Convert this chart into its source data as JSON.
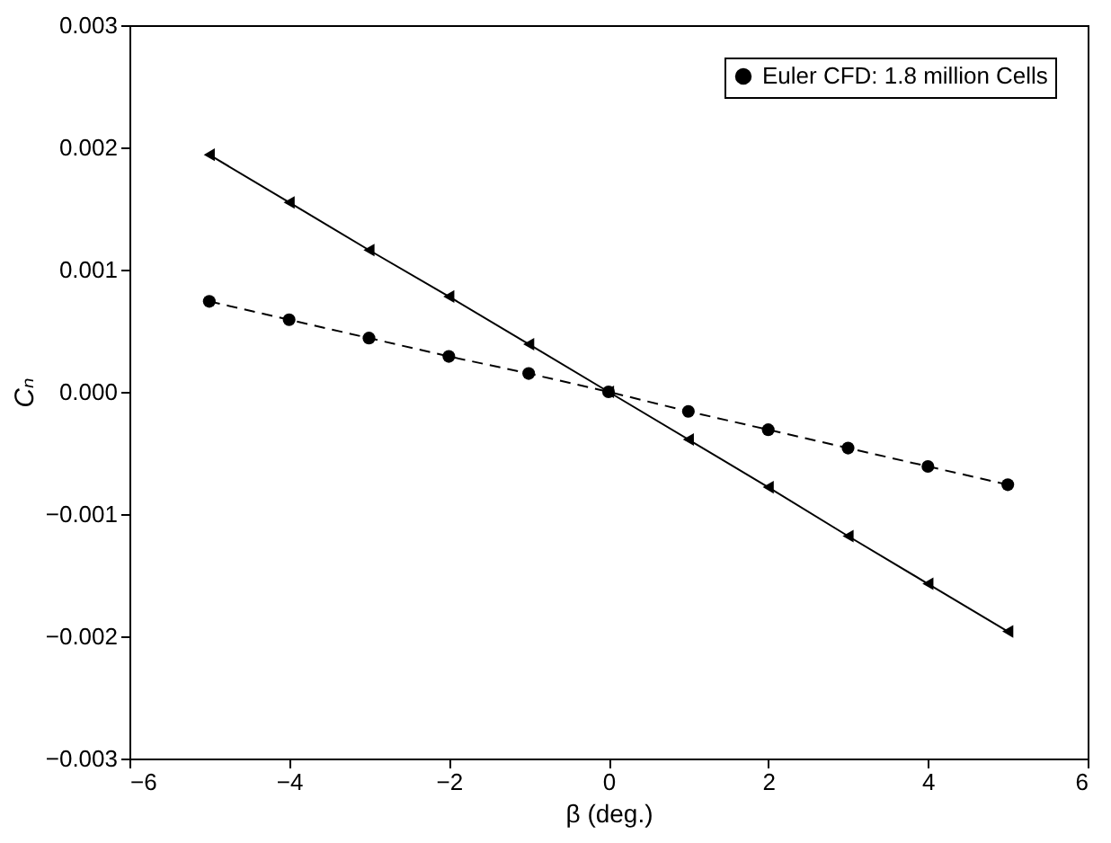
{
  "chart_data": {
    "type": "line",
    "xlabel": "β (deg.)",
    "ylabel": "Cₙ",
    "x": [
      -5,
      -4,
      -3,
      -2,
      -1,
      0,
      1,
      2,
      3,
      4,
      5
    ],
    "series": [
      {
        "color": "#000000",
        "marker": "triangle",
        "line_style": "solid",
        "values": [
          0.00194,
          0.00155,
          0.00116,
          0.00078,
          0.00039,
          0,
          -0.00039,
          -0.00078,
          -0.00118,
          -0.00157,
          -0.00196
        ]
      },
      {
        "name": "Euler CFD: 1.8 million Cells",
        "color": "#000000",
        "marker": "circle",
        "line_style": "dashed",
        "values": [
          0.00074,
          0.00059,
          0.00044,
          0.00029,
          0.00015,
          0,
          -0.00016,
          -0.00031,
          -0.00046,
          -0.00061,
          -0.00076
        ]
      }
    ],
    "xlim": [
      -6,
      6
    ],
    "xticks": [
      {
        "value": -6,
        "label": "−6"
      },
      {
        "value": -4,
        "label": "−4"
      },
      {
        "value": -2,
        "label": "−2"
      },
      0,
      2,
      4,
      6
    ],
    "ylim": [
      -0.003,
      0.003
    ],
    "yticks": [
      {
        "value": -0.003,
        "label": "−0.003"
      },
      {
        "value": -0.002,
        "label": "−0.002"
      },
      {
        "value": -0.001,
        "label": "−0.001"
      },
      {
        "value": 0,
        "label": "0.000"
      },
      {
        "value": 0.001,
        "label": "0.001"
      },
      {
        "value": 0.002,
        "label": "0.002"
      },
      {
        "value": 0.003,
        "label": "0.003"
      }
    ],
    "grid": false,
    "legend": "top right"
  }
}
